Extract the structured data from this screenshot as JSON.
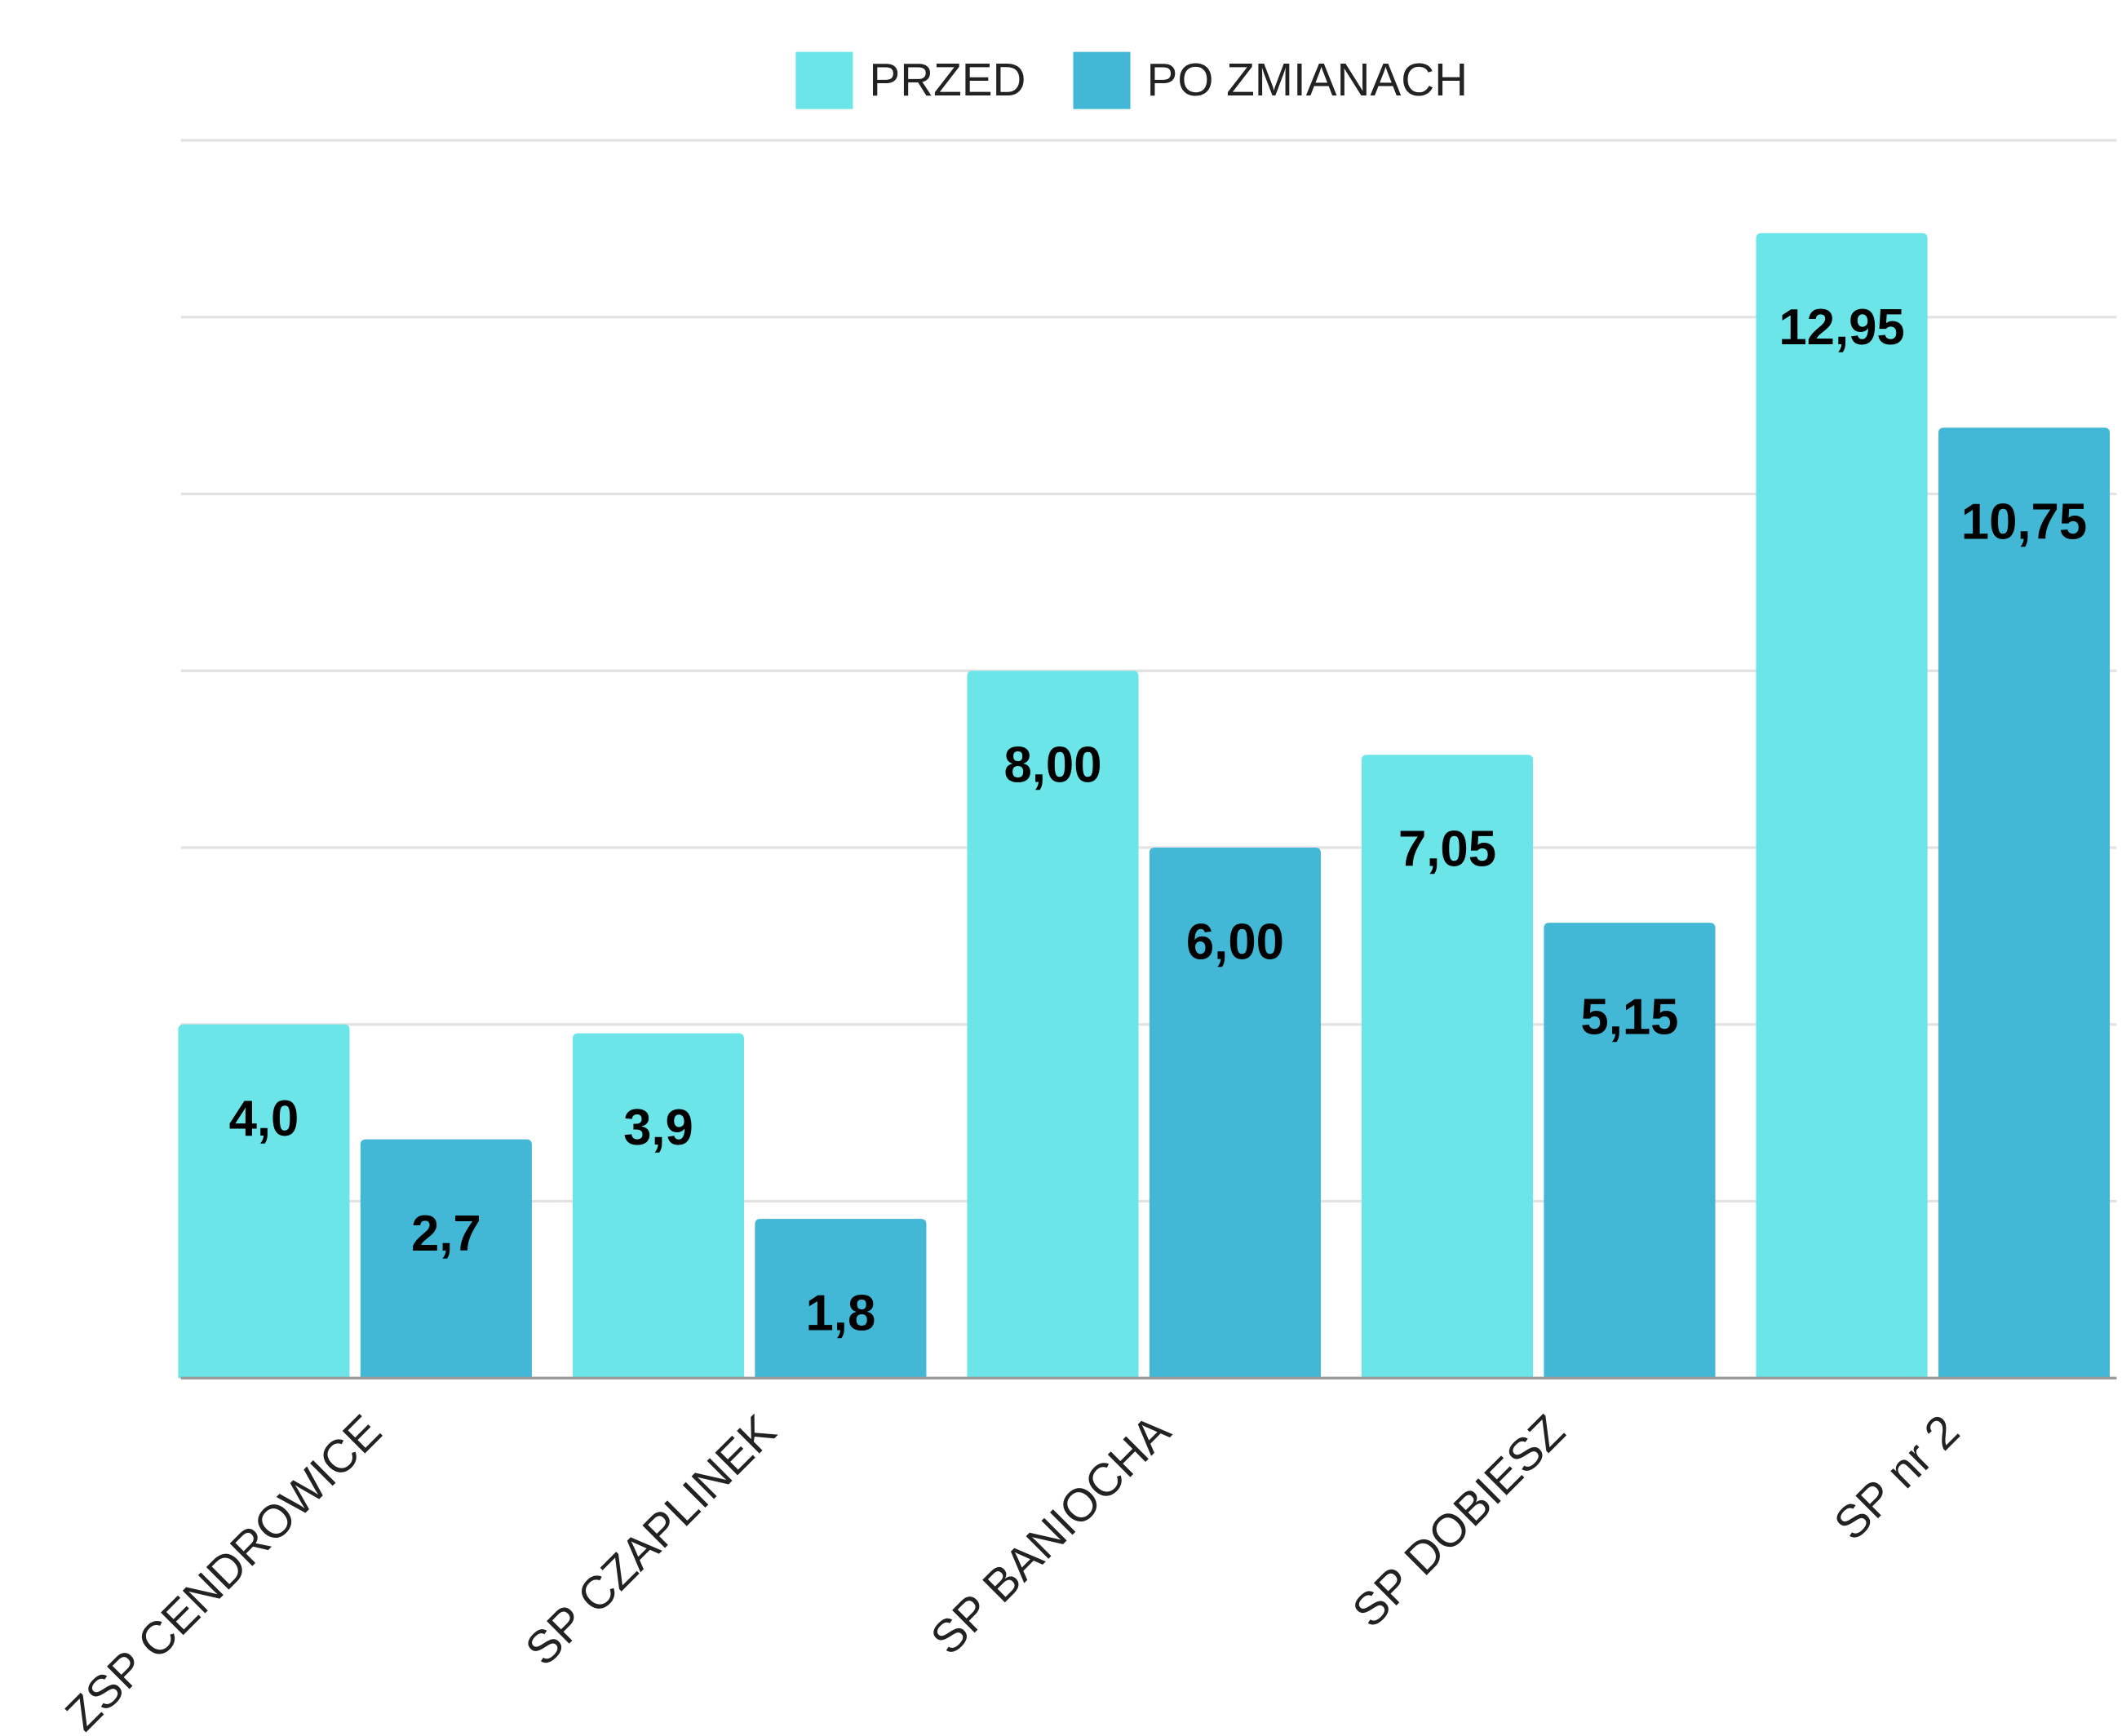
{
  "chart_data": {
    "type": "bar",
    "categories": [
      "ZSP CENDROWICE",
      "SP CZAPLINEK",
      "SP BANIOCHA",
      "SP DOBIESZ",
      "SP nr 2"
    ],
    "series": [
      {
        "name": "PRZED",
        "color": "#6ce5e8",
        "values": [
          4.0,
          3.9,
          8.0,
          7.05,
          12.95
        ],
        "value_labels": [
          "4,0",
          "3,9",
          "8,00",
          "7,05",
          "12,95"
        ]
      },
      {
        "name": "PO ZMIANACH",
        "color": "#42b7d6",
        "values": [
          2.7,
          1.8,
          6.0,
          5.15,
          10.75
        ],
        "value_labels": [
          "2,7",
          "1,8",
          "6,00",
          "5,15",
          "10,75"
        ]
      }
    ],
    "ylim": [
      0,
      14
    ],
    "yticks": [
      0,
      2,
      4,
      6,
      8,
      10,
      12,
      14
    ],
    "grid": true,
    "legend": "top"
  }
}
